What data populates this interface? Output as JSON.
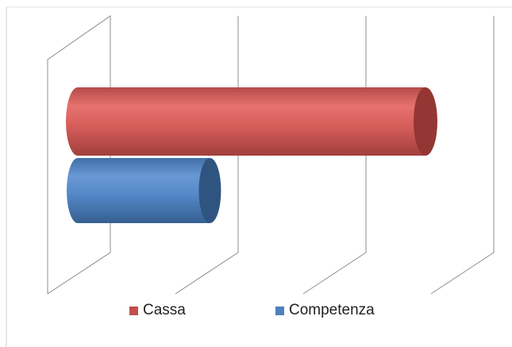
{
  "chart_data": {
    "type": "bar",
    "orientation": "horizontal",
    "style": "3d-cylinder",
    "series": [
      {
        "name": "Cassa",
        "value": 100,
        "color": "#C0504D"
      },
      {
        "name": "Competenza",
        "value": 38,
        "color": "#4F81BD"
      }
    ],
    "xlim": [
      0,
      100
    ],
    "grid": true,
    "legend_position": "bottom"
  }
}
